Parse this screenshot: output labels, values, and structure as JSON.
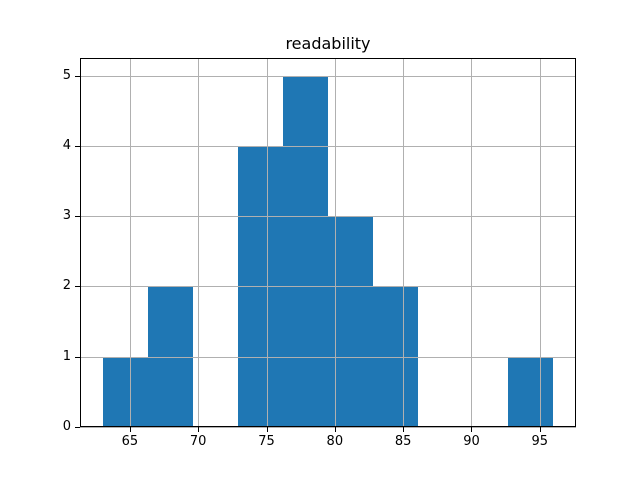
{
  "figure": {
    "background": "#ffffff"
  },
  "chart_data": {
    "type": "bar",
    "subtype": "histogram",
    "title": "readability",
    "xlabel": "",
    "ylabel": "",
    "bin_edges": [
      63.0,
      66.3,
      69.6,
      72.9,
      76.2,
      79.5,
      82.8,
      86.1,
      89.4,
      92.7,
      96.0
    ],
    "counts": [
      1,
      2,
      0,
      4,
      5,
      3,
      2,
      0,
      0,
      1
    ],
    "xlim": [
      61.35,
      97.65
    ],
    "ylim": [
      0,
      5.25
    ],
    "x_ticks": [
      65,
      70,
      75,
      80,
      85,
      90,
      95
    ],
    "x_tick_labels": [
      "65",
      "70",
      "75",
      "80",
      "85",
      "90",
      "95"
    ],
    "y_ticks": [
      0,
      1,
      2,
      3,
      4,
      5
    ],
    "y_tick_labels": [
      "0",
      "1",
      "2",
      "3",
      "4",
      "5"
    ],
    "grid": true,
    "legend": null,
    "bar_color": "#1f77b4",
    "grid_color": "#b0b0b0",
    "spine_color": "#000000",
    "text_color": "#000000"
  }
}
